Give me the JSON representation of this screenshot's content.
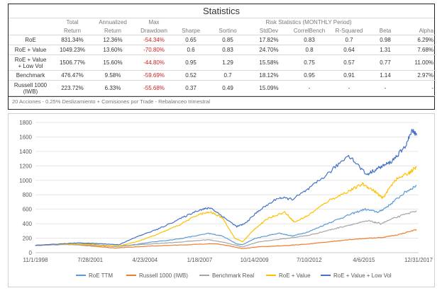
{
  "stats": {
    "title": "Statistics",
    "header_top": [
      "",
      "Total",
      "Annualized",
      "Max",
      "",
      "",
      "Risk Statistics (MONTHLY Period)",
      "",
      "",
      "",
      ""
    ],
    "header_bottom": [
      "",
      "Return",
      "Return",
      "Drawdown",
      "Sharpe",
      "Sortino",
      "StdDev",
      "CorrelBench",
      "R-Squared",
      "Beta",
      "Alpha"
    ],
    "rows": [
      {
        "label": "RoE",
        "cells": [
          "831.34%",
          "12.36%",
          "-54.34%",
          "0.65",
          "0.85",
          "17.82%",
          "0.83",
          "0.7",
          "0.98",
          "6.29%"
        ]
      },
      {
        "label": "RoE + Value",
        "cells": [
          "1049.23%",
          "13.60%",
          "-70.80%",
          "0.6",
          "0.83",
          "24.70%",
          "0.8",
          "0.64",
          "1.31",
          "7.68%"
        ]
      },
      {
        "label": "RoE + Value\n+ Low Vol",
        "cells": [
          "1506.77%",
          "15.60%",
          "-44.80%",
          "0.95",
          "1.29",
          "15.58%",
          "0.75",
          "0.57",
          "0.77",
          "11.00%"
        ]
      },
      {
        "label": "Benchmark",
        "cells": [
          "476.47%",
          "9.58%",
          "-59.69%",
          "0.52",
          "0.7",
          "18.12%",
          "0.95",
          "0.91",
          "1.14",
          "2.97%"
        ]
      },
      {
        "label": "Russell 1000\n(IWB)",
        "cells": [
          "223.72%",
          "6.33%",
          "-55.68%",
          "0.37",
          "0.49",
          "15.09%",
          "-",
          "-",
          "-",
          "-"
        ]
      }
    ],
    "footnote": "20 Acciones - 0.25% Deslizamiento + Comisiones por Trade - Rebalanceo trimestral",
    "negative_color": "#d21e1e"
  },
  "chart_data": {
    "type": "line",
    "x_ticks": [
      "11/1/1998",
      "7/28/2001",
      "4/23/2004",
      "1/18/2007",
      "10/14/2009",
      "7/10/2012",
      "4/6/2015",
      "12/31/2017"
    ],
    "y_ticks": [
      0,
      200,
      400,
      600,
      800,
      1000,
      1200,
      1400,
      1600,
      1800
    ],
    "ylim": [
      0,
      1800
    ],
    "x_range": [
      "11/1/1998",
      "12/31/2017"
    ],
    "grid": "horizontal",
    "legend_position": "bottom",
    "series": [
      {
        "name": "RoE TTM",
        "color": "#5b9bd5",
        "x": [
          1998.83,
          2000.0,
          2000.5,
          2001.5,
          2002.5,
          2003.2,
          2004.5,
          2006.0,
          2007.5,
          2008.2,
          2008.9,
          2009.2,
          2009.8,
          2011.0,
          2011.7,
          2012.5,
          2013.5,
          2014.5,
          2015.3,
          2016.0,
          2016.5,
          2017.3,
          2017.9
        ],
        "y": [
          100,
          110,
          115,
          120,
          95,
          90,
          140,
          190,
          265,
          230,
          120,
          110,
          195,
          270,
          230,
          290,
          410,
          520,
          600,
          560,
          650,
          830,
          930
        ]
      },
      {
        "name": "Russell 1000 (IWB)",
        "color": "#ed7d31",
        "x": [
          1998.83,
          2000.0,
          2000.7,
          2001.5,
          2002.8,
          2003.2,
          2004.5,
          2006.0,
          2007.8,
          2008.5,
          2009.2,
          2010.0,
          2011.5,
          2012.5,
          2013.5,
          2014.5,
          2015.5,
          2016.2,
          2017.0,
          2017.9
        ],
        "y": [
          100,
          118,
          112,
          95,
          65,
          70,
          90,
          105,
          125,
          95,
          55,
          80,
          100,
          120,
          150,
          180,
          200,
          210,
          250,
          320
        ]
      },
      {
        "name": "Benchmark Real",
        "color": "#a5a5a5",
        "x": [
          1998.83,
          2000.0,
          2000.5,
          2001.5,
          2002.8,
          2004.5,
          2006.0,
          2007.5,
          2008.3,
          2009.2,
          2010.0,
          2011.5,
          2012.5,
          2013.5,
          2014.5,
          2015.5,
          2016.1,
          2016.8,
          2017.9
        ],
        "y": [
          100,
          115,
          110,
          105,
          85,
          120,
          145,
          180,
          140,
          80,
          150,
          200,
          240,
          310,
          380,
          440,
          400,
          480,
          580
        ]
      },
      {
        "name": "RoE + Value",
        "color": "#ffc000",
        "x": [
          1998.83,
          2000.0,
          2001.0,
          2002.0,
          2003.0,
          2004.0,
          2005.0,
          2006.0,
          2007.0,
          2007.6,
          2008.2,
          2008.8,
          2009.2,
          2009.8,
          2010.5,
          2011.3,
          2011.8,
          2012.5,
          2013.5,
          2014.5,
          2015.2,
          2015.8,
          2016.2,
          2016.8,
          2017.5,
          2017.9
        ],
        "y": [
          100,
          115,
          120,
          105,
          90,
          160,
          260,
          380,
          530,
          560,
          480,
          200,
          150,
          330,
          480,
          560,
          420,
          520,
          720,
          850,
          950,
          850,
          750,
          1000,
          1100,
          1180
        ]
      },
      {
        "name": "RoE + Value + Low Vol",
        "color": "#4472c4",
        "x": [
          1998.83,
          2000.0,
          2001.0,
          2002.0,
          2003.0,
          2004.0,
          2005.0,
          2006.0,
          2007.0,
          2007.6,
          2008.3,
          2008.9,
          2009.3,
          2010.0,
          2011.0,
          2011.7,
          2012.5,
          2013.5,
          2014.5,
          2015.4,
          2016.0,
          2016.6,
          2017.3,
          2017.7,
          2017.9
        ],
        "y": [
          100,
          120,
          135,
          125,
          110,
          230,
          330,
          460,
          590,
          620,
          480,
          360,
          400,
          580,
          760,
          740,
          880,
          1100,
          1350,
          1080,
          1170,
          1250,
          1450,
          1700,
          1620
        ]
      }
    ]
  }
}
